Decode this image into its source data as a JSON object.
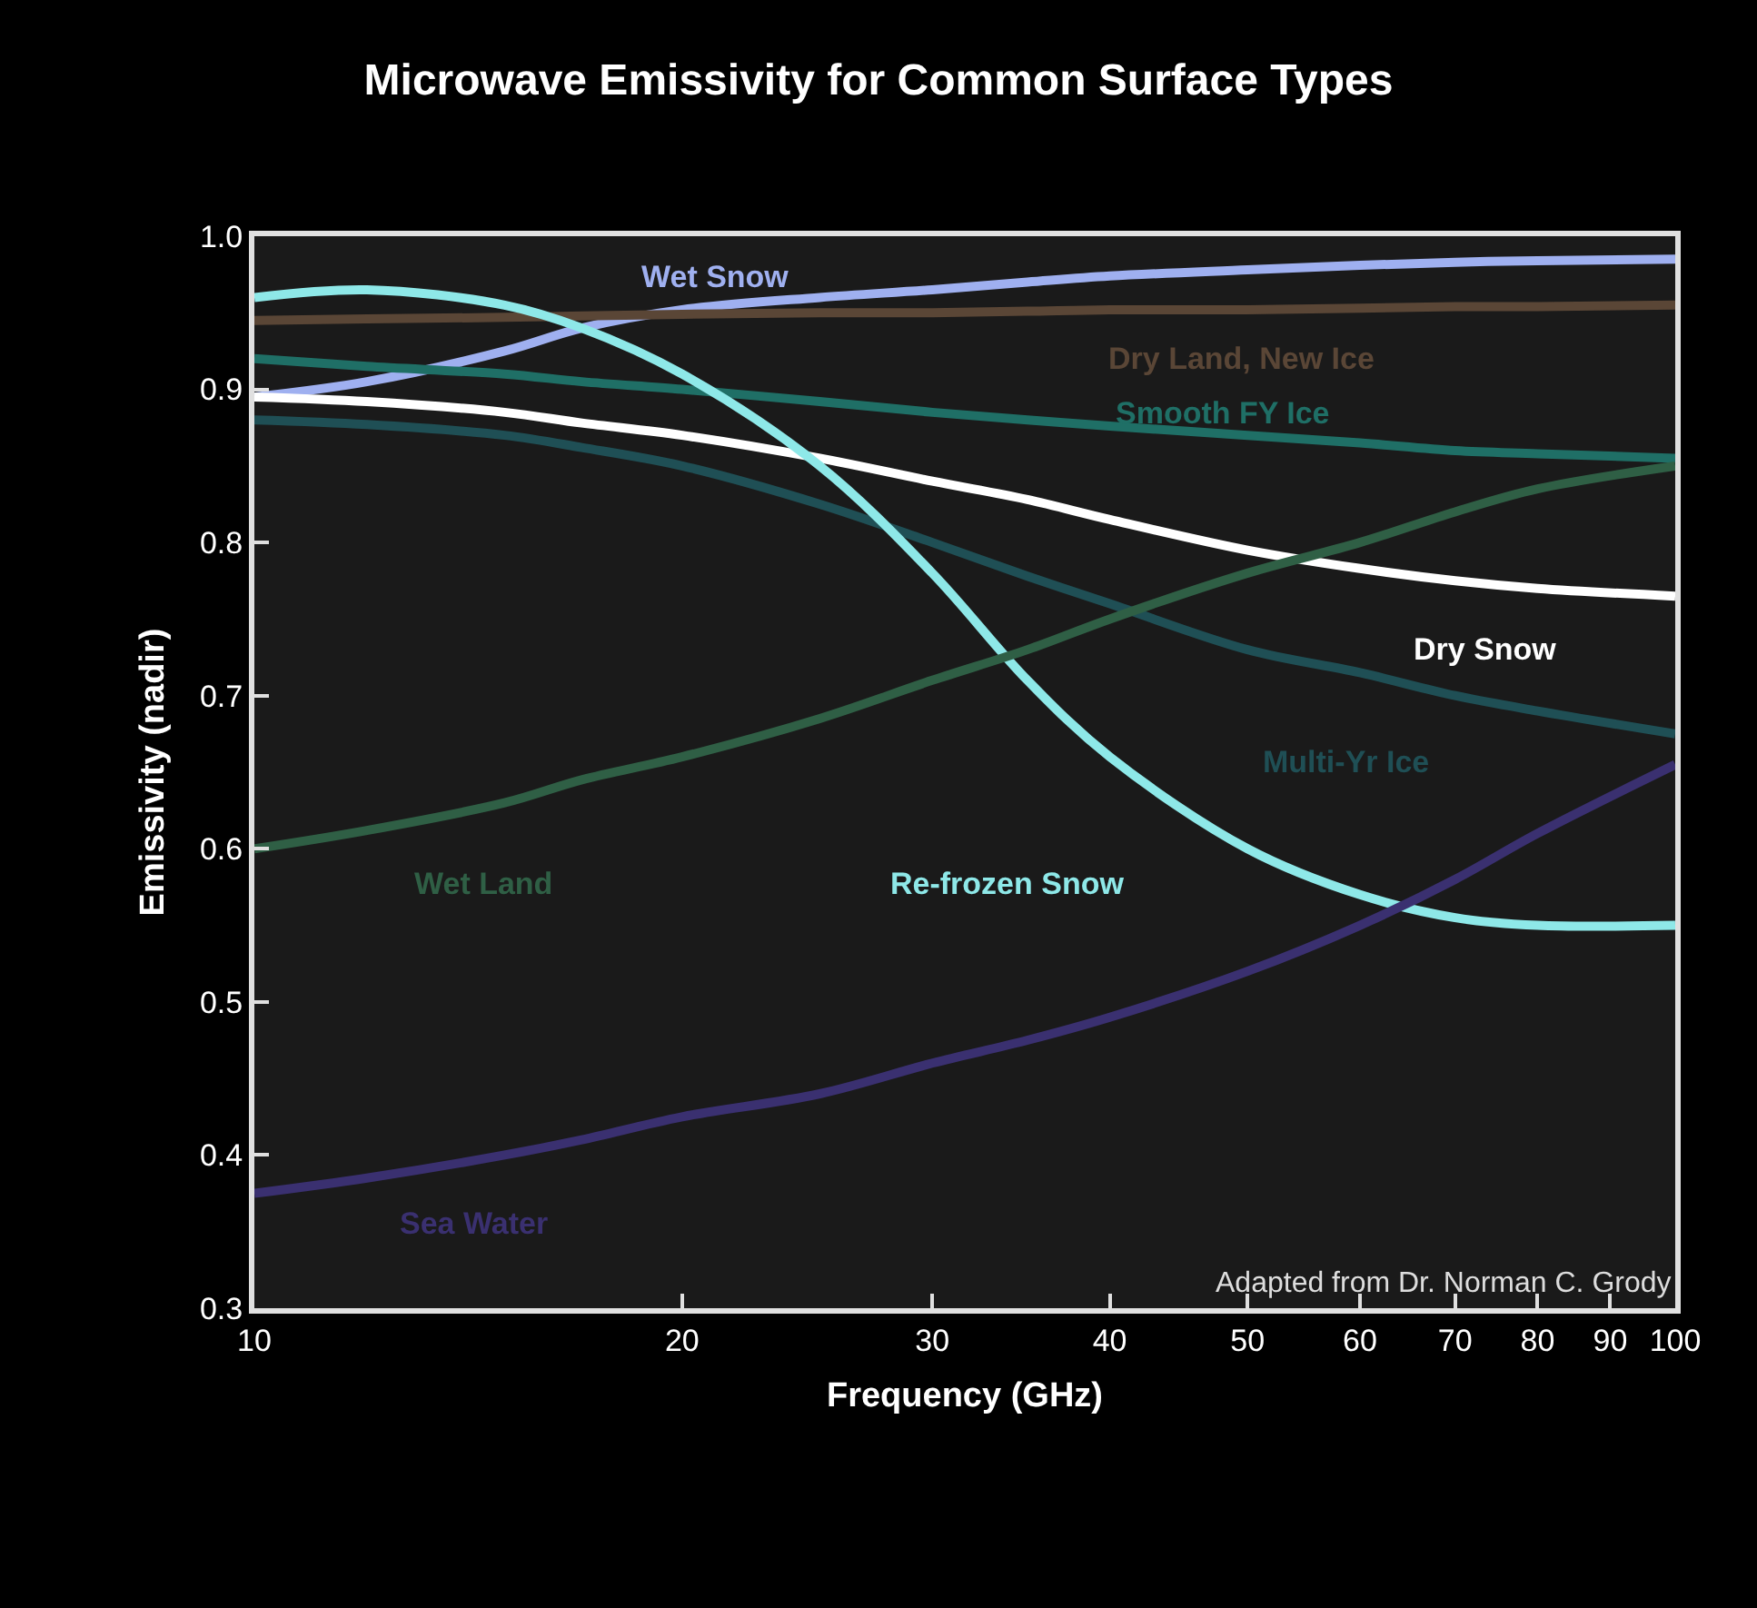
{
  "chart_data": {
    "type": "line",
    "title": "Microwave Emissivity for Common Surface Types",
    "xlabel": "Frequency (GHz)",
    "ylabel": "Emissivity (nadir)",
    "log": "x",
    "xlim": [
      10,
      100
    ],
    "xticks": [
      10,
      20,
      30,
      40,
      50,
      60,
      70,
      80,
      90,
      100
    ],
    "ylim": [
      0.3,
      1.0
    ],
    "yticks": [
      0.3,
      0.4,
      0.5,
      0.6,
      0.7,
      0.8,
      0.9,
      {
        "value": 1.0,
        "label": "1.0"
      }
    ],
    "grid": false,
    "legend": false,
    "marker": "none",
    "line_style": "solid",
    "x": [
      10,
      12,
      15,
      17,
      20,
      25,
      30,
      35,
      40,
      50,
      60,
      70,
      80,
      100
    ],
    "series": [
      {
        "name": "Wet Snow",
        "color": "#9fb0f0",
        "values": [
          0.895,
          0.905,
          0.925,
          0.94,
          0.952,
          0.96,
          0.965,
          0.97,
          0.974,
          0.978,
          0.981,
          0.983,
          0.984,
          0.985
        ]
      },
      {
        "name": "Dry Land, New Ice",
        "color": "#5a4636",
        "values": [
          0.945,
          0.946,
          0.947,
          0.948,
          0.949,
          0.95,
          0.95,
          0.951,
          0.952,
          0.952,
          0.953,
          0.954,
          0.954,
          0.955
        ]
      },
      {
        "name": "Smooth FY Ice",
        "color": "#1f6f66",
        "values": [
          0.92,
          0.915,
          0.91,
          0.905,
          0.9,
          0.892,
          0.885,
          0.88,
          0.876,
          0.87,
          0.865,
          0.86,
          0.858,
          0.855
        ]
      },
      {
        "name": "Dry Snow",
        "color": "#ffffff",
        "values": [
          0.895,
          0.892,
          0.885,
          0.878,
          0.87,
          0.855,
          0.84,
          0.828,
          0.815,
          0.795,
          0.783,
          0.775,
          0.77,
          0.765
        ]
      },
      {
        "name": "Multi-Yr Ice",
        "color": "#1f4f55",
        "values": [
          0.88,
          0.877,
          0.87,
          0.862,
          0.85,
          0.825,
          0.8,
          0.778,
          0.76,
          0.73,
          0.715,
          0.7,
          0.69,
          0.675
        ]
      },
      {
        "name": "Re-frozen Snow",
        "color": "#8ee8e8",
        "values": [
          0.96,
          0.965,
          0.955,
          0.94,
          0.91,
          0.85,
          0.78,
          0.71,
          0.66,
          0.6,
          0.57,
          0.555,
          0.55,
          0.55
        ]
      },
      {
        "name": "Wet Land",
        "color": "#2f5f45",
        "values": [
          0.6,
          0.612,
          0.63,
          0.645,
          0.66,
          0.685,
          0.71,
          0.73,
          0.75,
          0.78,
          0.8,
          0.82,
          0.835,
          0.85
        ]
      },
      {
        "name": "Sea Water",
        "color": "#3a3070",
        "values": [
          0.375,
          0.385,
          0.4,
          0.41,
          0.425,
          0.44,
          0.46,
          0.475,
          0.49,
          0.52,
          0.55,
          0.58,
          0.61,
          0.655
        ]
      }
    ],
    "annotations": [
      "Adapted from Dr. Norman C. Grody"
    ]
  }
}
